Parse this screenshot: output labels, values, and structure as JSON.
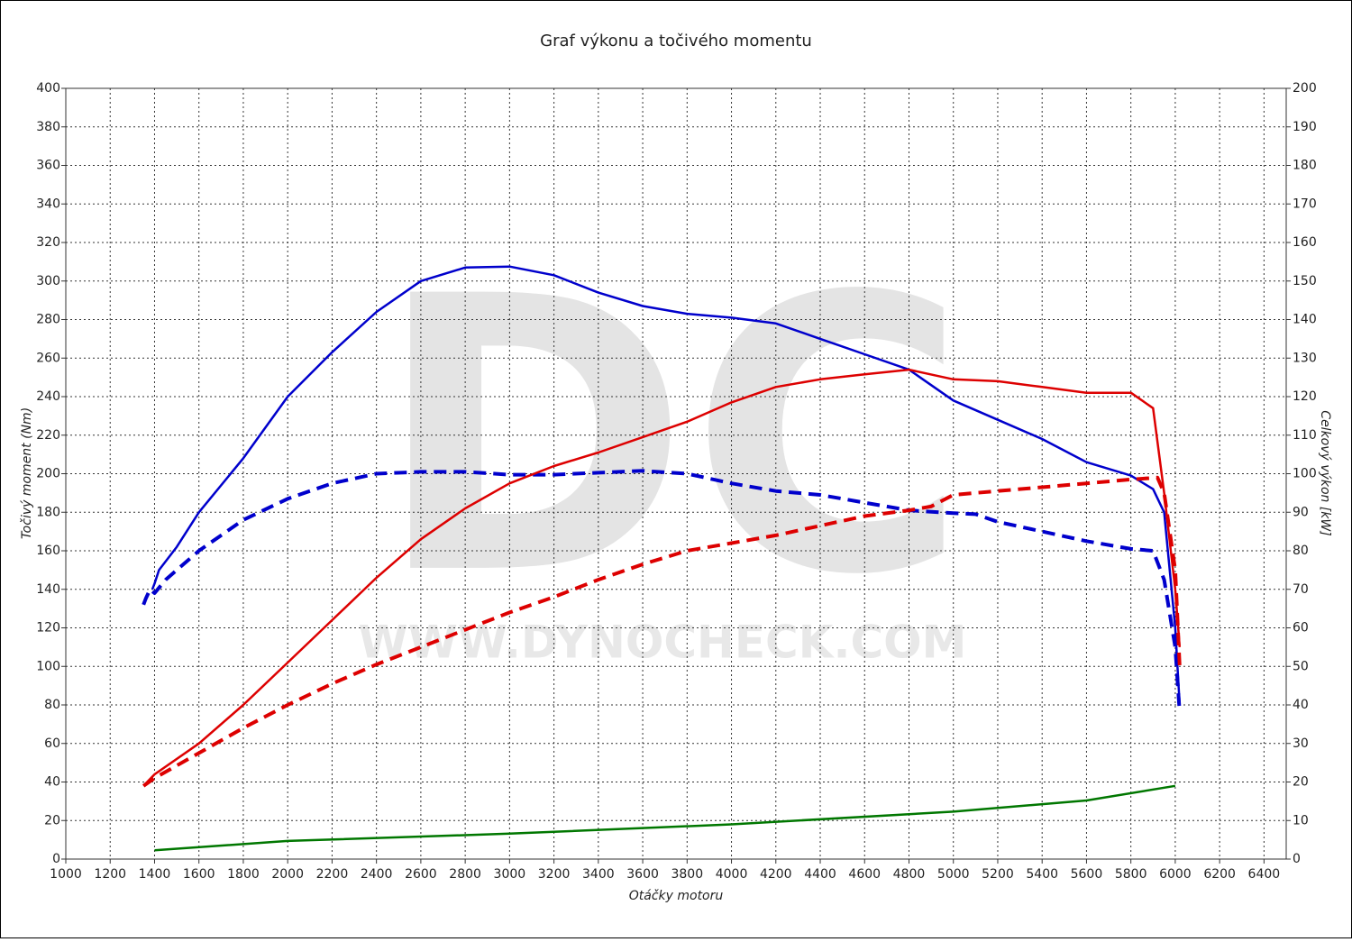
{
  "chart_data": {
    "type": "line",
    "title": "Graf výkonu a točivého momentu",
    "x_label": "Otáčky motoru",
    "y_label": "Točivý moment (Nm)",
    "y2_label": "Celkový výkon [kW]",
    "watermark": {
      "logo": "DC",
      "url": "WWW.DYNOCHECK.COM"
    },
    "xlim": [
      1000,
      6500
    ],
    "xticks": [
      1000,
      1200,
      1400,
      1600,
      1800,
      2000,
      2200,
      2400,
      2600,
      2800,
      3000,
      3200,
      3400,
      3600,
      3800,
      4000,
      4200,
      4400,
      4600,
      4800,
      5000,
      5200,
      5400,
      5600,
      5800,
      6000,
      6200,
      6400
    ],
    "ylim": [
      0,
      400
    ],
    "yticks": [
      0,
      20,
      40,
      60,
      80,
      100,
      120,
      140,
      160,
      180,
      200,
      220,
      240,
      260,
      280,
      300,
      320,
      340,
      360,
      380,
      400
    ],
    "y2lim": [
      0,
      200
    ],
    "y2ticks": [
      0,
      10,
      20,
      30,
      40,
      50,
      60,
      70,
      80,
      90,
      100,
      110,
      120,
      130,
      140,
      150,
      160,
      170,
      180,
      190,
      200
    ],
    "grid": true,
    "series": [
      {
        "color": "#0000cc",
        "style": "solid",
        "x": [
          1390,
          1400,
          1420,
          1500,
          1600,
          1800,
          2000,
          2200,
          2400,
          2600,
          2800,
          3000,
          3200,
          3400,
          3600,
          3800,
          4000,
          4200,
          4400,
          4600,
          4800,
          5000,
          5200,
          5400,
          5600,
          5800,
          5900,
          5950,
          6000,
          6020
        ],
        "values": [
          140,
          143,
          150,
          162,
          180,
          208,
          240,
          263,
          284,
          300,
          307,
          307.5,
          303,
          294,
          287,
          283,
          281,
          278,
          270,
          262,
          254,
          238,
          228,
          218,
          206,
          199,
          192,
          180,
          120,
          80
        ]
      },
      {
        "color": "#0000cc",
        "style": "dashed",
        "x": [
          1350,
          1360,
          1380,
          1400,
          1450,
          1600,
          1800,
          2000,
          2200,
          2400,
          2600,
          2800,
          3000,
          3200,
          3400,
          3600,
          3800,
          4000,
          4200,
          4400,
          4600,
          4800,
          5000,
          5100,
          5200,
          5400,
          5600,
          5800,
          5900,
          5950,
          6000,
          6020
        ],
        "values": [
          132,
          135,
          140,
          138,
          145,
          160,
          176,
          187,
          195,
          200,
          201,
          201,
          199.5,
          199.5,
          200.5,
          201.5,
          200,
          195,
          191,
          189,
          185,
          181,
          179.5,
          179,
          175,
          170,
          165,
          161,
          160,
          145,
          110,
          76
        ]
      },
      {
        "color": "#dd0000",
        "style": "solid",
        "axis": "y2",
        "x": [
          1350,
          1400,
          1600,
          1800,
          2000,
          2200,
          2400,
          2600,
          2800,
          3000,
          3200,
          3400,
          3600,
          3800,
          4000,
          4200,
          4400,
          4600,
          4800,
          5000,
          5200,
          5400,
          5600,
          5800,
          5900,
          5950,
          6000,
          6020
        ],
        "values": [
          19,
          22,
          30,
          40,
          51,
          62,
          73,
          83,
          91,
          97.5,
          102,
          105.5,
          109.5,
          113.5,
          118.5,
          122.5,
          124.5,
          125.8,
          127,
          124.5,
          124,
          122.5,
          121,
          121,
          117,
          95,
          70,
          55
        ]
      },
      {
        "color": "#dd0000",
        "style": "dashed",
        "axis": "y2",
        "x": [
          1350,
          1400,
          1600,
          1800,
          2000,
          2200,
          2400,
          2600,
          2800,
          3000,
          3200,
          3400,
          3600,
          3800,
          4000,
          4200,
          4400,
          4600,
          4800,
          4900,
          5000,
          5200,
          5400,
          5600,
          5800,
          5920,
          5950,
          6000,
          6020
        ],
        "values": [
          19,
          21,
          27.5,
          34,
          40,
          45.5,
          50.5,
          55,
          59.5,
          64,
          68,
          72.5,
          76.5,
          80,
          82,
          84,
          86.5,
          89,
          90.5,
          91.5,
          94.5,
          95.5,
          96.5,
          97.5,
          98.5,
          99,
          95,
          75,
          50
        ]
      },
      {
        "color": "#007700",
        "style": "solid",
        "axis": "y2",
        "x": [
          1400,
          2000,
          3000,
          4000,
          5000,
          5600,
          6000
        ],
        "values": [
          2.3,
          4.7,
          6.6,
          9,
          12.3,
          15.2,
          19
        ]
      }
    ]
  }
}
